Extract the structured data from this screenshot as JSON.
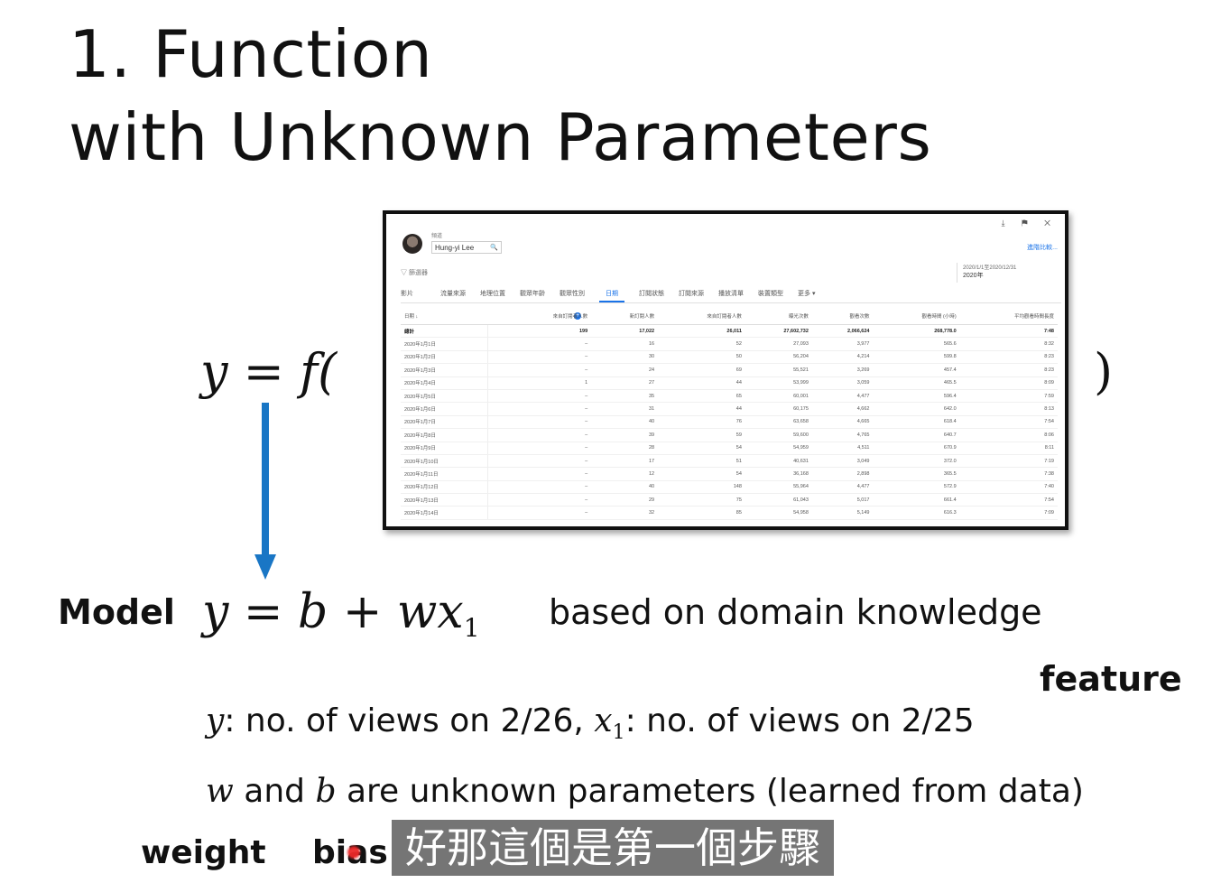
{
  "slide": {
    "title_line1": "1. Function",
    "title_line2": "with Unknown Parameters",
    "equation_left": "y = f(",
    "paren_right": ")",
    "arrow_color": "#1976c5",
    "model_label": "Model",
    "model_equation_main": "y = b + wx",
    "model_equation_sub": "1",
    "domain_text": "based on domain knowledge",
    "feature_label": "feature",
    "desc1_y": "y",
    "desc1_a": ": no. of views on 2/26, ",
    "desc1_x": "x",
    "desc1_sub": "1",
    "desc1_b": ": no. of views on 2/25",
    "desc2_w": "w",
    "desc2_a": " and ",
    "desc2_b_var": "b",
    "desc2_rest": " are unknown parameters (learned from data)",
    "weight_label": "weight",
    "bias_label": "bias",
    "subtitle": "好那這個是第一個步驟"
  },
  "screenshot": {
    "top_icons": "⤓ ⚑ ✕",
    "channel_label": "頻道",
    "channel_name": "Hung-yi Lee",
    "search_icon": "🔍",
    "export_link": "進階比較...",
    "filter_label": "▽ 篩選器",
    "date_range": "2020/1/1至2020/12/31",
    "date_value": "2020年",
    "tabs": [
      "影片",
      "流量來源",
      "地理位置",
      "觀眾年齡",
      "觀眾性別",
      "日期",
      "訂閱狀態",
      "訂閱來源",
      "播放清單",
      "裝置類型",
      "更多 ▾"
    ],
    "active_tab": "日期",
    "columns": [
      "日期 ↓",
      "",
      "來自訂閱者人數",
      "新訂閱人數",
      "來自訂閱者人數",
      "曝光次數",
      "觀看次數",
      "觀看時間 (小時)",
      "平均觀看時間長度"
    ],
    "total_row": [
      "總計",
      "",
      "199",
      "17,022",
      "26,011",
      "27,602,732",
      "2,066,624",
      "268,778.0",
      "7:48"
    ],
    "rows": [
      [
        "2020年1月1日",
        "",
        "–",
        "16",
        "52",
        "27,093",
        "3,977",
        "565.6",
        "8:32"
      ],
      [
        "2020年1月2日",
        "",
        "–",
        "30",
        "50",
        "56,204",
        "4,214",
        "599.8",
        "8:23"
      ],
      [
        "2020年1月3日",
        "",
        "–",
        "24",
        "69",
        "55,521",
        "3,269",
        "457.4",
        "8:23"
      ],
      [
        "2020年1月4日",
        "",
        "1",
        "27",
        "44",
        "53,999",
        "3,059",
        "465.5",
        "8:09"
      ],
      [
        "2020年1月5日",
        "",
        "–",
        "35",
        "65",
        "60,001",
        "4,477",
        "596.4",
        "7:59"
      ],
      [
        "2020年1月6日",
        "",
        "–",
        "31",
        "44",
        "60,175",
        "4,662",
        "642.0",
        "8:13"
      ],
      [
        "2020年1月7日",
        "",
        "–",
        "40",
        "76",
        "63,658",
        "4,665",
        "618.4",
        "7:54"
      ],
      [
        "2020年1月8日",
        "",
        "–",
        "39",
        "59",
        "59,600",
        "4,765",
        "640.7",
        "8:06"
      ],
      [
        "2020年1月9日",
        "",
        "–",
        "28",
        "54",
        "54,959",
        "4,511",
        "670.9",
        "8:11"
      ],
      [
        "2020年1月10日",
        "",
        "–",
        "17",
        "51",
        "40,631",
        "3,049",
        "372.0",
        "7:19"
      ],
      [
        "2020年1月11日",
        "",
        "–",
        "12",
        "54",
        "36,168",
        "2,898",
        "365.5",
        "7:38"
      ],
      [
        "2020年1月12日",
        "",
        "–",
        "40",
        "148",
        "55,964",
        "4,477",
        "572.9",
        "7:40"
      ],
      [
        "2020年1月13日",
        "",
        "–",
        "29",
        "75",
        "61,043",
        "5,017",
        "661.4",
        "7:54"
      ],
      [
        "2020年1月14日",
        "",
        "–",
        "32",
        "85",
        "54,958",
        "5,149",
        "616.3",
        "7:09"
      ]
    ]
  }
}
